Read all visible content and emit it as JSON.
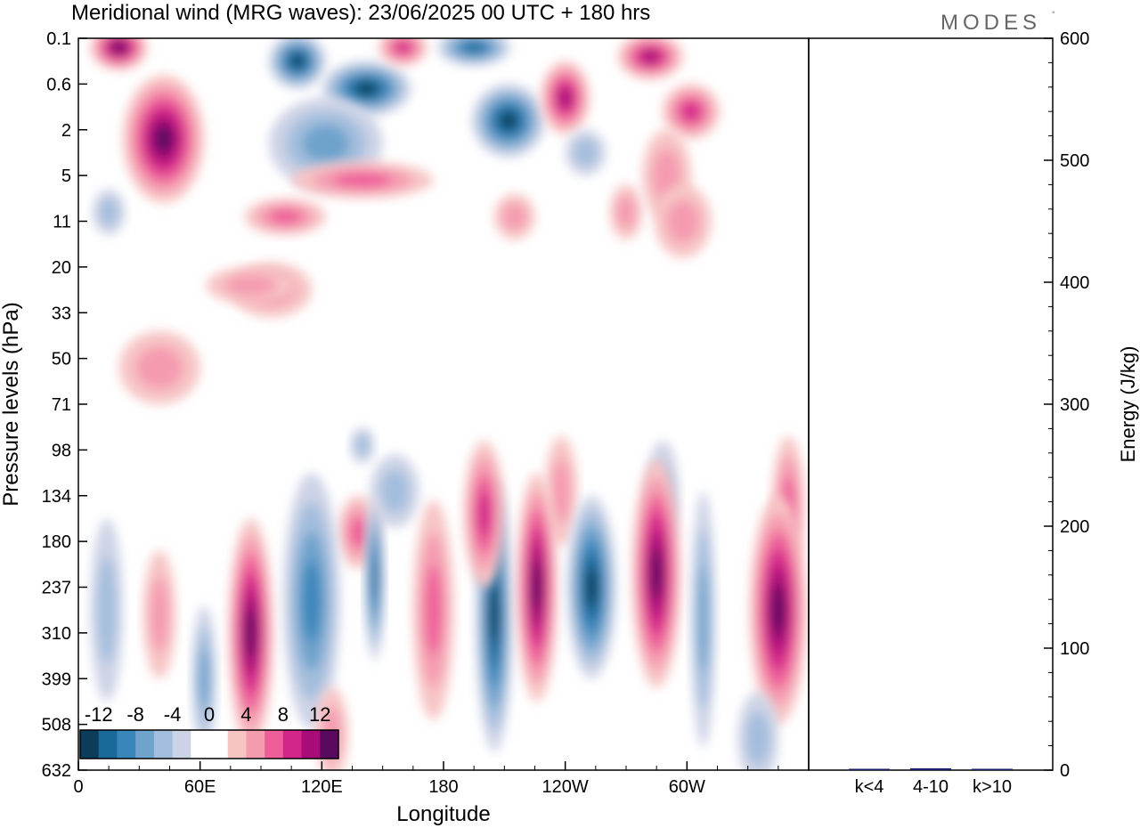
{
  "title": "Meridional wind (MRG waves):  23/06/2025  00 UTC  + 180 hrs",
  "logo": {
    "text": "MODES",
    "mark": "°"
  },
  "colors": {
    "neg": [
      "#0b3d5b",
      "#1a6a99",
      "#3a86bb",
      "#6ea3cc",
      "#a3bedd",
      "#cdd3e6"
    ],
    "pos": [
      "#f7c4c4",
      "#f59bb0",
      "#ee5f9a",
      "#d3258a",
      "#a80c79",
      "#5a0a5e"
    ],
    "bar": "#1a1f6e"
  },
  "chart_data": [
    {
      "type": "heatmap",
      "name": "meridional-wind-contours",
      "xlabel": "Longitude",
      "ylabel": "Pressure levels (hPa)",
      "x_ticks": [
        "0",
        "60E",
        "120E",
        "180",
        "120W",
        "60W"
      ],
      "x_tick_values": [
        0,
        60,
        120,
        180,
        240,
        300
      ],
      "xlim": [
        0,
        360
      ],
      "y_ticks": [
        "0.1",
        "0.6",
        "2",
        "5",
        "11",
        "20",
        "33",
        "50",
        "71",
        "98",
        "134",
        "180",
        "237",
        "310",
        "399",
        "508",
        "632"
      ],
      "colorbar": {
        "labels": [
          "-12",
          "-8",
          "-4",
          "0",
          "4",
          "8",
          "12"
        ],
        "levels": [
          -14,
          -12,
          -10,
          -8,
          -6,
          -4,
          -2,
          2,
          4,
          6,
          8,
          10,
          12,
          14
        ]
      },
      "cells": [
        {
          "lon": 42,
          "lev": 2.2,
          "rx": 20,
          "ry": 1.4,
          "v": 14
        },
        {
          "lon": 20,
          "lev": 0.2,
          "rx": 14,
          "ry": 0.5,
          "v": 13
        },
        {
          "lon": 108,
          "lev": 0.5,
          "rx": 14,
          "ry": 0.6,
          "v": -12
        },
        {
          "lon": 142,
          "lev": 1.1,
          "rx": 22,
          "ry": 0.6,
          "v": -11
        },
        {
          "lon": 212,
          "lev": 1.8,
          "rx": 18,
          "ry": 0.8,
          "v": -12
        },
        {
          "lon": 195,
          "lev": 0.2,
          "rx": 18,
          "ry": 0.4,
          "v": -10
        },
        {
          "lon": 160,
          "lev": 0.2,
          "rx": 12,
          "ry": 0.4,
          "v": 8
        },
        {
          "lon": 240,
          "lev": 1.3,
          "rx": 12,
          "ry": 0.8,
          "v": 9
        },
        {
          "lon": 282,
          "lev": 0.4,
          "rx": 16,
          "ry": 0.5,
          "v": 10
        },
        {
          "lon": 302,
          "lev": 1.6,
          "rx": 14,
          "ry": 0.6,
          "v": 8
        },
        {
          "lon": 122,
          "lev": 2.3,
          "rx": 28,
          "ry": 1.0,
          "v": -6
        },
        {
          "lon": 140,
          "lev": 3.1,
          "rx": 35,
          "ry": 0.4,
          "v": 6
        },
        {
          "lon": 102,
          "lev": 3.9,
          "rx": 20,
          "ry": 0.4,
          "v": 5
        },
        {
          "lon": 95,
          "lev": 5.5,
          "rx": 20,
          "ry": 0.6,
          "v": 3
        },
        {
          "lon": 290,
          "lev": 3.0,
          "rx": 12,
          "ry": 1.0,
          "v": 3
        },
        {
          "lon": 270,
          "lev": 3.8,
          "rx": 8,
          "ry": 0.6,
          "v": 4
        },
        {
          "lon": 250,
          "lev": 2.5,
          "rx": 10,
          "ry": 0.5,
          "v": -4
        },
        {
          "lon": 298,
          "lev": 4.0,
          "rx": 14,
          "ry": 0.8,
          "v": 3
        },
        {
          "lon": 15,
          "lev": 3.8,
          "rx": 8,
          "ry": 0.5,
          "v": -4
        },
        {
          "lon": 215,
          "lev": 3.9,
          "rx": 10,
          "ry": 0.5,
          "v": 3
        },
        {
          "lon": 85,
          "lev": 5.4,
          "rx": 22,
          "ry": 0.4,
          "v": 3
        },
        {
          "lon": 40,
          "lev": 7.2,
          "rx": 20,
          "ry": 0.8,
          "v": 3
        },
        {
          "lon": 156,
          "lev": 9.9,
          "rx": 12,
          "ry": 0.8,
          "v": -4
        },
        {
          "lon": 140,
          "lev": 8.9,
          "rx": 6,
          "ry": 0.4,
          "v": -3
        },
        {
          "lon": 238,
          "lev": 9.9,
          "rx": 8,
          "ry": 1.2,
          "v": 4
        },
        {
          "lon": 288,
          "lev": 10.0,
          "rx": 8,
          "ry": 1.2,
          "v": -3
        },
        {
          "lon": 350,
          "lev": 10.2,
          "rx": 8,
          "ry": 1.5,
          "v": 6
        },
        {
          "lon": 138,
          "lev": 10.8,
          "rx": 10,
          "ry": 0.8,
          "v": 5
        },
        {
          "lon": 14,
          "lev": 12.5,
          "rx": 8,
          "ry": 2.0,
          "v": -4
        },
        {
          "lon": 40,
          "lev": 12.6,
          "rx": 8,
          "ry": 1.4,
          "v": 4
        },
        {
          "lon": 85,
          "lev": 13.0,
          "rx": 11,
          "ry": 2.5,
          "v": 11
        },
        {
          "lon": 115,
          "lev": 12.3,
          "rx": 14,
          "ry": 2.8,
          "v": -8
        },
        {
          "lon": 146,
          "lev": 11.8,
          "rx": 5,
          "ry": 1.8,
          "v": -10
        },
        {
          "lon": 175,
          "lev": 12.5,
          "rx": 10,
          "ry": 2.4,
          "v": 5
        },
        {
          "lon": 205,
          "lev": 12.6,
          "rx": 9,
          "ry": 3.0,
          "v": -13
        },
        {
          "lon": 226,
          "lev": 12.0,
          "rx": 10,
          "ry": 2.5,
          "v": 14
        },
        {
          "lon": 253,
          "lev": 12.0,
          "rx": 12,
          "ry": 2.0,
          "v": -11
        },
        {
          "lon": 285,
          "lev": 11.7,
          "rx": 12,
          "ry": 2.5,
          "v": 11
        },
        {
          "lon": 308,
          "lev": 12.7,
          "rx": 6,
          "ry": 2.8,
          "v": -6
        },
        {
          "lon": 345,
          "lev": 12.5,
          "rx": 14,
          "ry": 2.5,
          "v": 12
        },
        {
          "lon": 200,
          "lev": 10.4,
          "rx": 10,
          "ry": 1.6,
          "v": 8
        },
        {
          "lon": 62,
          "lev": 14.0,
          "rx": 6,
          "ry": 1.6,
          "v": -6
        },
        {
          "lon": 125,
          "lev": 15.2,
          "rx": 8,
          "ry": 1.0,
          "v": 3
        },
        {
          "lon": 335,
          "lev": 15.3,
          "rx": 10,
          "ry": 1.0,
          "v": -3
        }
      ]
    },
    {
      "type": "bar",
      "name": "energy-by-wavenumber",
      "ylabel": "Energy (J/kg)",
      "categories": [
        "k<4",
        "4-10",
        "k>10"
      ],
      "values": [
        0.5,
        1.5,
        0
      ],
      "ylim": [
        0,
        600
      ],
      "y_ticks": [
        "0",
        "100",
        "200",
        "300",
        "400",
        "500",
        "600"
      ],
      "y_tick_values": [
        0,
        100,
        200,
        300,
        400,
        500,
        600
      ]
    }
  ]
}
